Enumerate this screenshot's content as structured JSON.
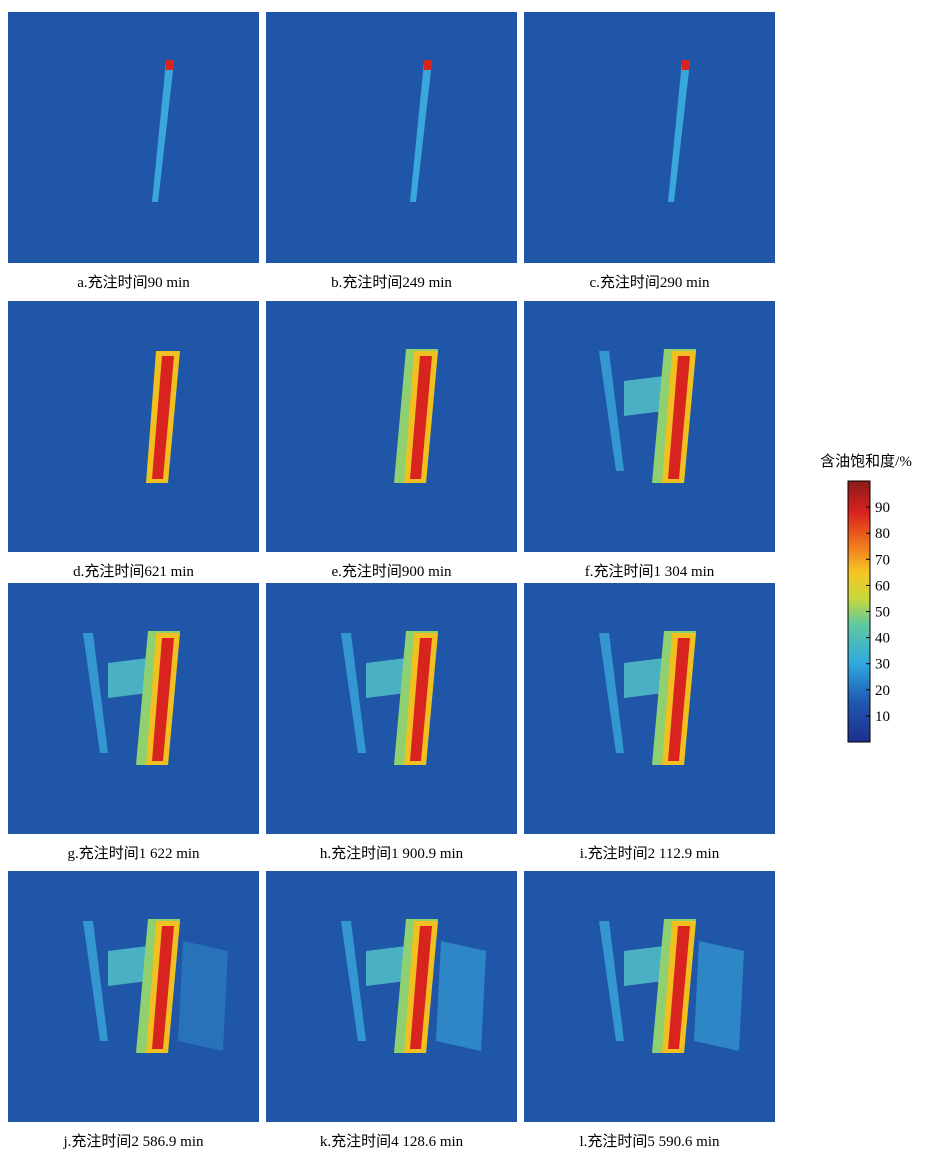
{
  "panels": [
    {
      "caption": "a.充注时间90 min"
    },
    {
      "caption": "b.充注时间249 min"
    },
    {
      "caption": "c.充注时间290 min"
    },
    {
      "caption": "d.充注时间621 min"
    },
    {
      "caption": "e.充注时间900 min"
    },
    {
      "caption": "f.充注时间1 304 min"
    },
    {
      "caption": "g.充注时间1 622 min"
    },
    {
      "caption": "h.充注时间1 900.9 min"
    },
    {
      "caption": "i.充注时间2 112.9 min"
    },
    {
      "caption": "j.充注时间2 586.9 min"
    },
    {
      "caption": "k.充注时间4 128.6 min"
    },
    {
      "caption": "l.充注时间5 590.6 min"
    }
  ],
  "colorbar": {
    "title": "含油饱和度/%",
    "lim": [
      0,
      100
    ],
    "ticks": [
      10,
      20,
      30,
      40,
      50,
      60,
      70,
      80,
      90
    ]
  }
}
